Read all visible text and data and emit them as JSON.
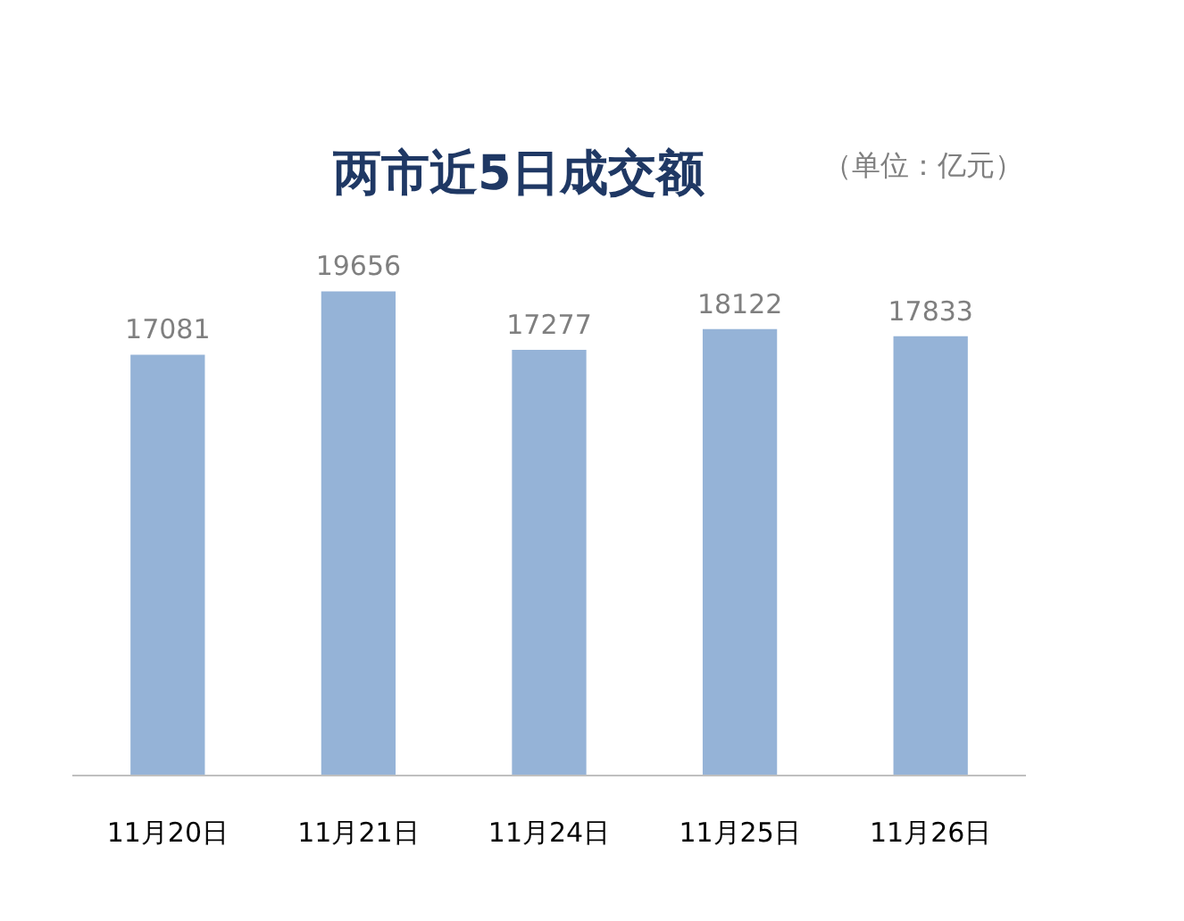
{
  "chart_data": {
    "type": "bar",
    "title": "两市近5日成交额",
    "subtitle": "（单位：亿元）",
    "categories": [
      "11月20日",
      "11月21日",
      "11月24日",
      "11月25日",
      "11月26日"
    ],
    "values": [
      17081,
      19656,
      17277,
      18122,
      17833
    ],
    "color": "#95b3d7",
    "data_labels": true,
    "tick_labels": "x"
  }
}
